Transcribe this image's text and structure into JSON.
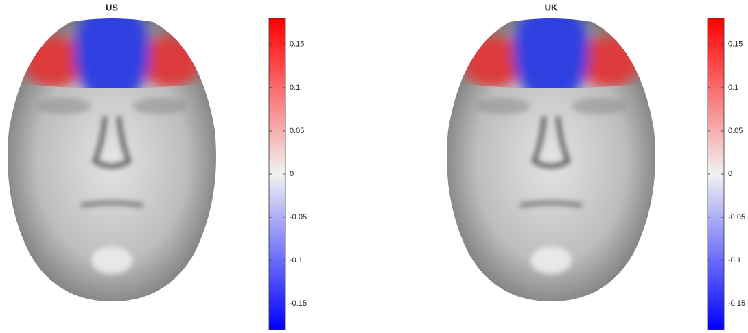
{
  "chart_data": [
    {
      "type": "heatmap",
      "title": "US",
      "clim": [
        -0.18,
        0.18
      ],
      "cticks": [
        -0.15,
        -0.1,
        -0.05,
        0,
        0.05,
        0.1,
        0.15
      ],
      "colormap": [
        "#0000ff",
        "#f2f2f2",
        "#ff0000"
      ]
    },
    {
      "type": "heatmap",
      "title": "UK",
      "clim": [
        -0.18,
        0.18
      ],
      "cticks": [
        -0.15,
        -0.1,
        -0.05,
        0,
        0.05,
        0.1,
        0.15
      ],
      "colormap": [
        "#0000ff",
        "#f2f2f2",
        "#ff0000"
      ]
    }
  ]
}
